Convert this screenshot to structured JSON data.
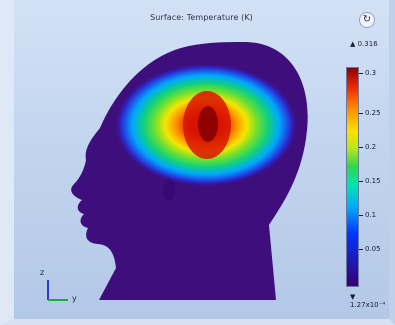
{
  "plot": {
    "title": "Surface: Temperature (K)"
  },
  "toolbar": {
    "refresh_glyph": "↻"
  },
  "colorbar": {
    "max_label": "▲ 0.316",
    "min_label": "▼ 1.27x10⁻⁴",
    "ticks": [
      "0.3",
      "0.25",
      "0.2",
      "0.15",
      "0.1",
      "0.05"
    ]
  },
  "axes": {
    "z_label": "z",
    "y_label": "y"
  },
  "colors": {
    "head_base": "#3d0e7c",
    "hot": "#c80000"
  },
  "icons": [
    "refresh-icon",
    "axis-triad-icon"
  ]
}
